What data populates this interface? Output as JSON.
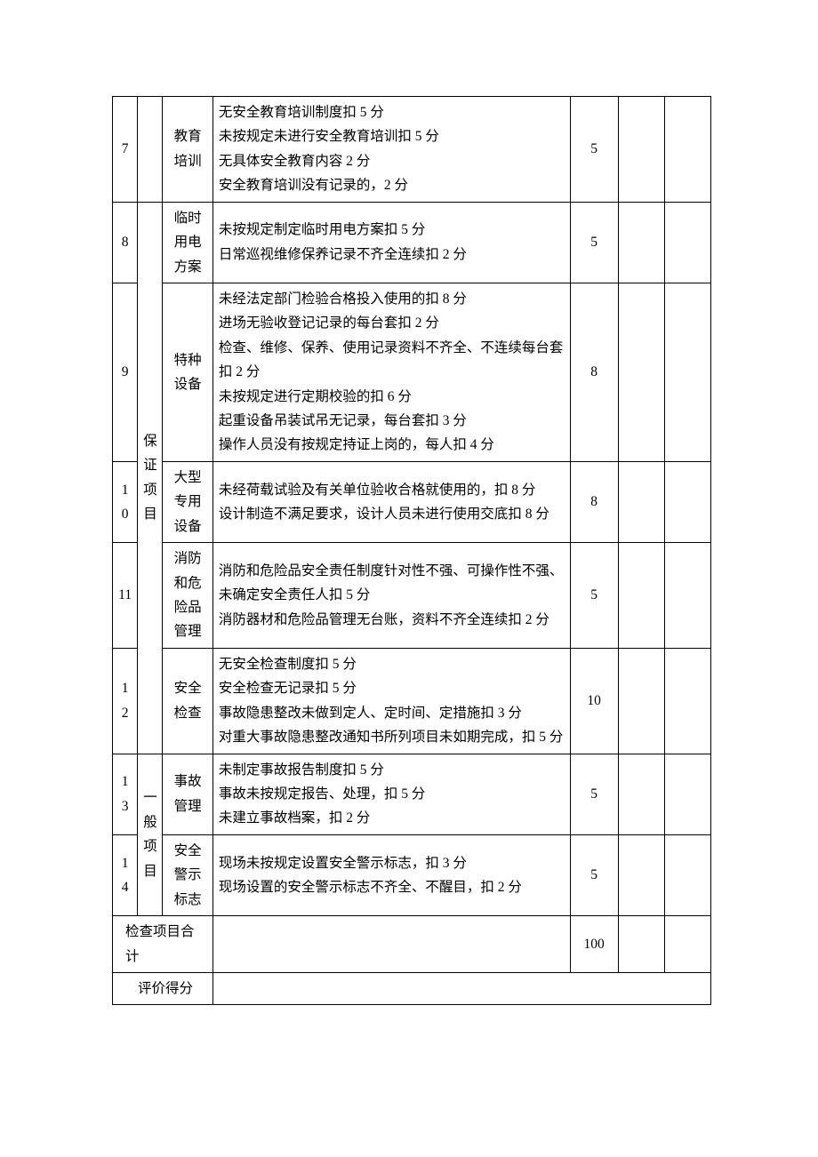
{
  "table": {
    "border_color": "#000000",
    "background_color": "#ffffff",
    "text_color": "#000000",
    "font_size_pt": 12,
    "line_height": 1.77,
    "categories": {
      "guarantee": "保证项目",
      "general": "一般项目"
    },
    "rows": [
      {
        "num": "7",
        "item": "教育培训",
        "desc": "无安全教育培训制度扣 5 分\n未按规定未进行安全教育培训扣 5 分\n无具体安全教育内容 2 分\n安全教育培训没有记录的，2 分",
        "score": "5"
      },
      {
        "num": "8",
        "item": "临时用电方案",
        "desc": "未按规定制定临时用电方案扣 5 分\n日常巡视维修保养记录不齐全连续扣 2 分",
        "score": "5"
      },
      {
        "num": "9",
        "item": "特种设备",
        "desc": "未经法定部门检验合格投入使用的扣 8 分\n进场无验收登记记录的每台套扣 2 分\n检查、维修、保养、使用记录资料不齐全、不连续每台套扣 2 分\n未按规定进行定期校验的扣 6 分\n起重设备吊装试吊无记录，每台套扣 3 分\n操作人员没有按规定持证上岗的，每人扣 4 分",
        "score": "8"
      },
      {
        "num": "10",
        "item": "大型专用设备",
        "desc": "未经荷载试验及有关单位验收合格就使用的，扣 8 分\n设计制造不满足要求，设计人员未进行使用交底扣 8 分",
        "score": "8"
      },
      {
        "num": "11",
        "item": "消防和危险品管理",
        "desc": "消防和危险品安全责任制度针对性不强、可操作性不强、未确定安全责任人扣 5 分\n消防器材和危险品管理无台账，资料不齐全连续扣 2 分",
        "score": "5"
      },
      {
        "num": "12",
        "item": "安全检查",
        "desc": "无安全检查制度扣 5 分\n安全检查无记录扣 5 分\n事故隐患整改未做到定人、定时间、定措施扣 3 分\n对重大事故隐患整改通知书所列项目未如期完成，扣 5 分",
        "score": "10"
      },
      {
        "num": "13",
        "item": "事故管理",
        "desc": "未制定事故报告制度扣 5 分\n事故未按规定报告、处理，扣 5 分\n未建立事故档案，扣 2 分",
        "score": "5"
      },
      {
        "num": "14",
        "item": "安全警示标志",
        "desc": "现场未按规定设置安全警示标志，扣 3 分\n现场设置的安全警示标志不齐全、不醒目，扣 2 分",
        "score": "5"
      }
    ],
    "footer": {
      "total_label": "检查项目合计",
      "total_score": "100",
      "eval_label": "评价得分"
    }
  }
}
